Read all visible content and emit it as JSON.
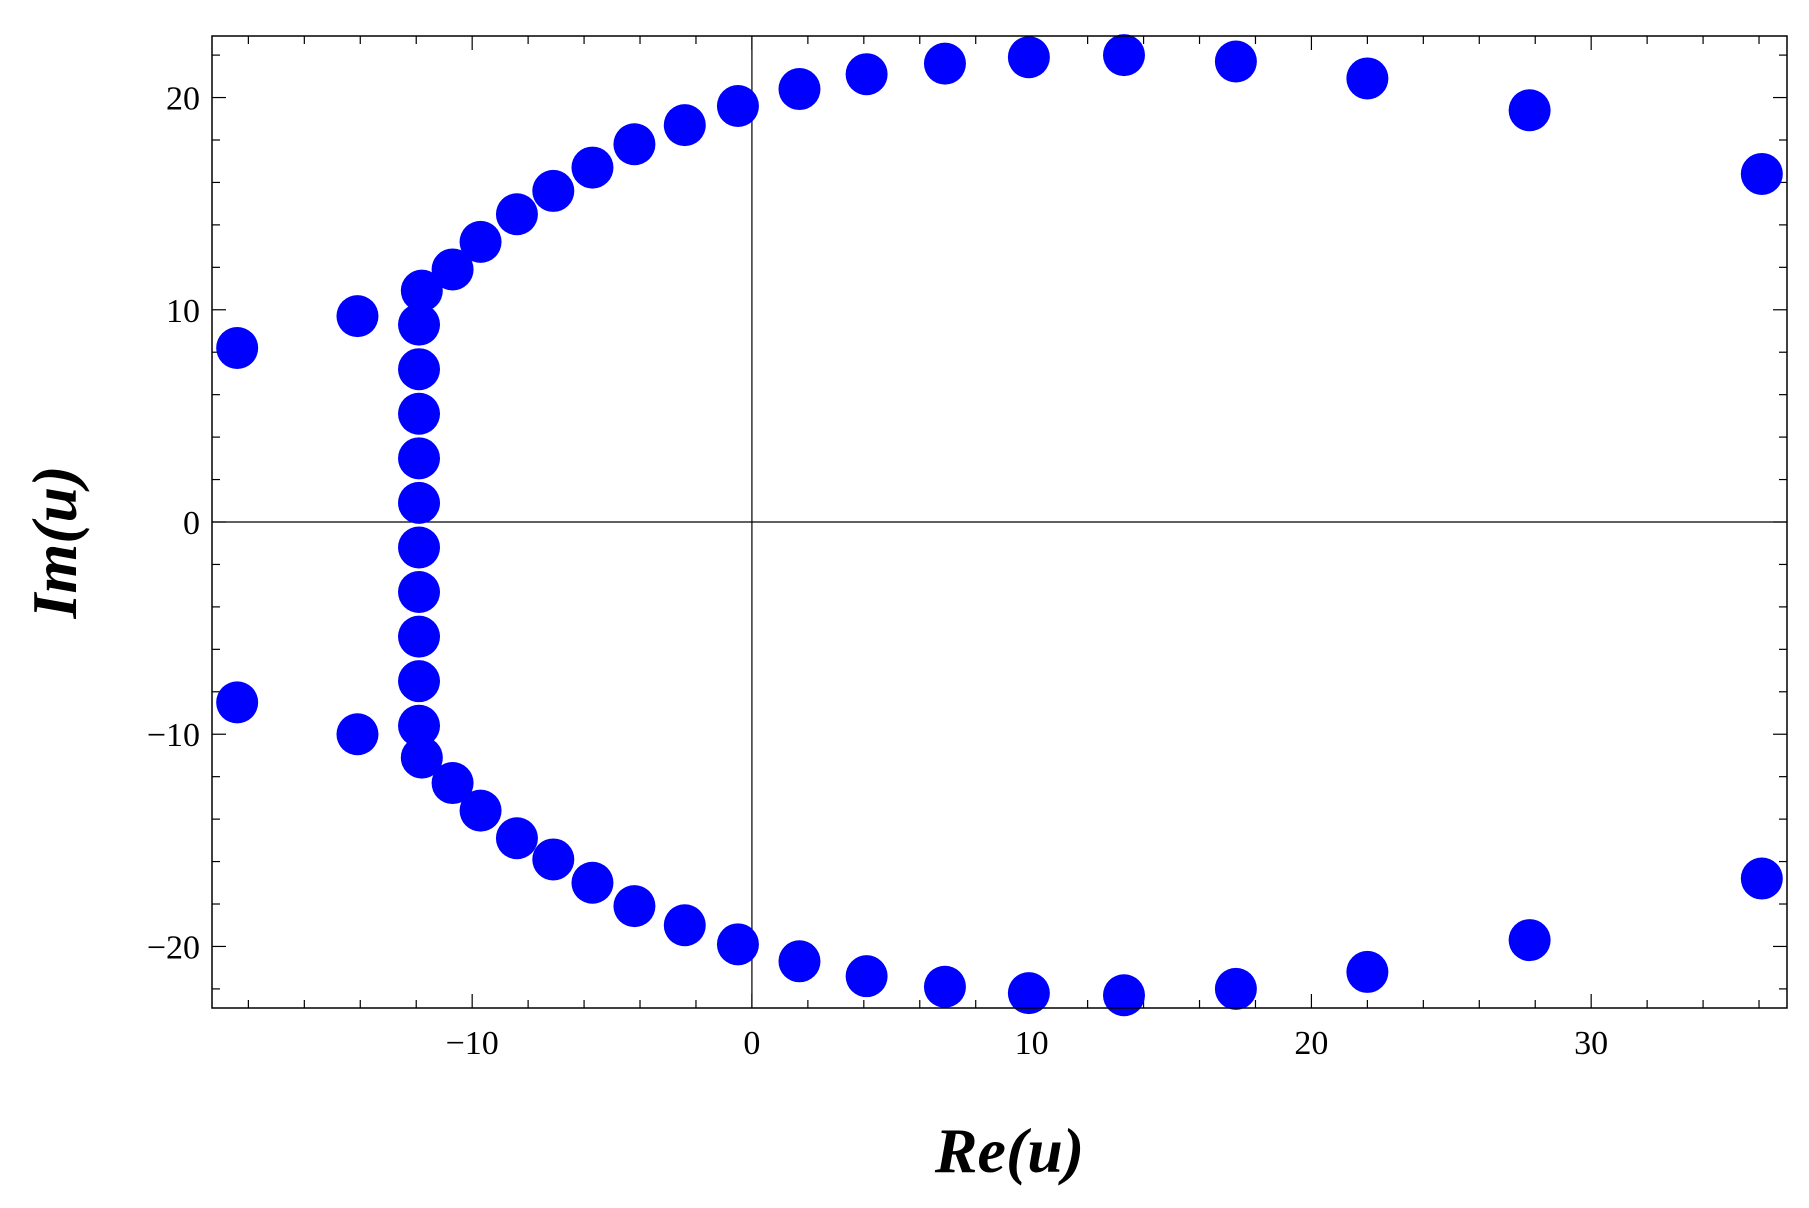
{
  "chart_data": {
    "type": "scatter",
    "xlabel": "Re(u)",
    "ylabel": "Im(u)",
    "xlim": [
      -19.3,
      37.0
    ],
    "ylim": [
      -22.9,
      22.9
    ],
    "x_ticks": [
      -10,
      0,
      10,
      20,
      30
    ],
    "y_ticks": [
      -20,
      -10,
      0,
      10,
      20
    ],
    "x_tick_labels": [
      "−10",
      "0",
      "10",
      "20",
      "30"
    ],
    "y_tick_labels": [
      "−20",
      "−10",
      "0",
      "10",
      "20"
    ],
    "grid": false,
    "axes_origin_lines": true,
    "marker_color": "#0000FF",
    "series": [
      {
        "points": [
          {
            "x": -18.4,
            "y": 8.2
          },
          {
            "x": -14.1,
            "y": 9.7
          },
          {
            "x": -11.8,
            "y": 10.9
          },
          {
            "x": -11.9,
            "y": 9.3
          },
          {
            "x": -11.9,
            "y": 7.2
          },
          {
            "x": -11.9,
            "y": 5.1
          },
          {
            "x": -11.9,
            "y": 3.0
          },
          {
            "x": -11.9,
            "y": 0.9
          },
          {
            "x": -11.9,
            "y": -1.2
          },
          {
            "x": -11.9,
            "y": -3.3
          },
          {
            "x": -11.9,
            "y": -5.4
          },
          {
            "x": -11.9,
            "y": -7.5
          },
          {
            "x": -11.9,
            "y": -9.6
          },
          {
            "x": -11.8,
            "y": -11.1
          },
          {
            "x": -10.7,
            "y": 11.9
          },
          {
            "x": -9.7,
            "y": 13.2
          },
          {
            "x": -8.4,
            "y": 14.5
          },
          {
            "x": -7.1,
            "y": 15.6
          },
          {
            "x": -5.7,
            "y": 16.7
          },
          {
            "x": -4.2,
            "y": 17.8
          },
          {
            "x": -2.4,
            "y": 18.7
          },
          {
            "x": -0.5,
            "y": 19.6
          },
          {
            "x": 1.7,
            "y": 20.4
          },
          {
            "x": 4.1,
            "y": 21.1
          },
          {
            "x": 6.9,
            "y": 21.6
          },
          {
            "x": 9.9,
            "y": 21.9
          },
          {
            "x": 13.3,
            "y": 22.0
          },
          {
            "x": 17.3,
            "y": 21.7
          },
          {
            "x": 22.0,
            "y": 20.9
          },
          {
            "x": 27.8,
            "y": 19.4
          },
          {
            "x": 36.1,
            "y": 16.4
          },
          {
            "x": -18.4,
            "y": -8.5
          },
          {
            "x": -14.1,
            "y": -10.0
          },
          {
            "x": -10.7,
            "y": -12.3
          },
          {
            "x": -9.7,
            "y": -13.6
          },
          {
            "x": -8.4,
            "y": -14.9
          },
          {
            "x": -7.1,
            "y": -15.9
          },
          {
            "x": -5.7,
            "y": -17.0
          },
          {
            "x": -4.2,
            "y": -18.1
          },
          {
            "x": -2.4,
            "y": -19.0
          },
          {
            "x": -0.5,
            "y": -19.9
          },
          {
            "x": 1.7,
            "y": -20.7
          },
          {
            "x": 4.1,
            "y": -21.4
          },
          {
            "x": 6.9,
            "y": -21.9
          },
          {
            "x": 9.9,
            "y": -22.2
          },
          {
            "x": 13.3,
            "y": -22.3
          },
          {
            "x": 17.3,
            "y": -22.0
          },
          {
            "x": 22.0,
            "y": -21.2
          },
          {
            "x": 27.8,
            "y": -19.7
          },
          {
            "x": 36.1,
            "y": -16.8
          }
        ]
      }
    ]
  }
}
